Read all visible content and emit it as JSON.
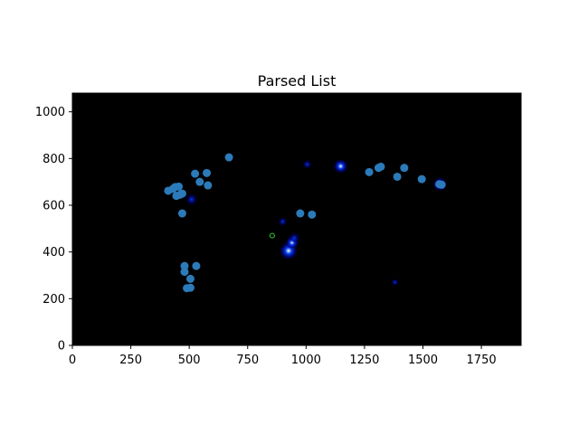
{
  "chart_data": {
    "type": "scatter",
    "title": "Parsed List",
    "xlabel": "",
    "ylabel": "",
    "xlim": [
      0,
      1920
    ],
    "ylim": [
      0,
      1080
    ],
    "x_ticks": [
      0,
      250,
      500,
      750,
      1000,
      1250,
      1500,
      1750
    ],
    "y_ticks": [
      0,
      200,
      400,
      600,
      800,
      1000
    ],
    "background": "heatmap",
    "background_color": "#000000",
    "grid": false,
    "colors": {
      "points": "#2b7bba",
      "heat_low": "#00008b",
      "heat_mid": "#0040ff",
      "heat_high": "#ffffff",
      "outlier_marker": "#32cd32"
    },
    "series": [
      {
        "marker": "filled-circle",
        "x": [
          410,
          430,
          440,
          455,
          470,
          445,
          460,
          470,
          525,
          575,
          545,
          580,
          670,
          480,
          480,
          530,
          505,
          490,
          505,
          975,
          1025,
          1270,
          1310,
          1320,
          1420,
          1390,
          1495,
          1570,
          1580
        ],
        "y": [
          662,
          670,
          678,
          680,
          650,
          640,
          645,
          565,
          735,
          738,
          700,
          685,
          805,
          340,
          315,
          340,
          285,
          245,
          247,
          565,
          560,
          742,
          760,
          765,
          760,
          722,
          712,
          690,
          688
        ]
      },
      {
        "marker": "open-circle",
        "x": [
          855
        ],
        "y": [
          470
        ]
      }
    ],
    "heat_spots": [
      {
        "x": 925,
        "y": 405,
        "intensity": 1.0
      },
      {
        "x": 940,
        "y": 440,
        "intensity": 0.6
      },
      {
        "x": 950,
        "y": 460,
        "intensity": 0.45
      },
      {
        "x": 1148,
        "y": 767,
        "intensity": 0.7
      },
      {
        "x": 1573,
        "y": 690,
        "intensity": 0.65
      },
      {
        "x": 510,
        "y": 625,
        "intensity": 0.55
      },
      {
        "x": 1005,
        "y": 775,
        "intensity": 0.3
      },
      {
        "x": 900,
        "y": 530,
        "intensity": 0.3
      },
      {
        "x": 1380,
        "y": 270,
        "intensity": 0.15
      }
    ]
  }
}
